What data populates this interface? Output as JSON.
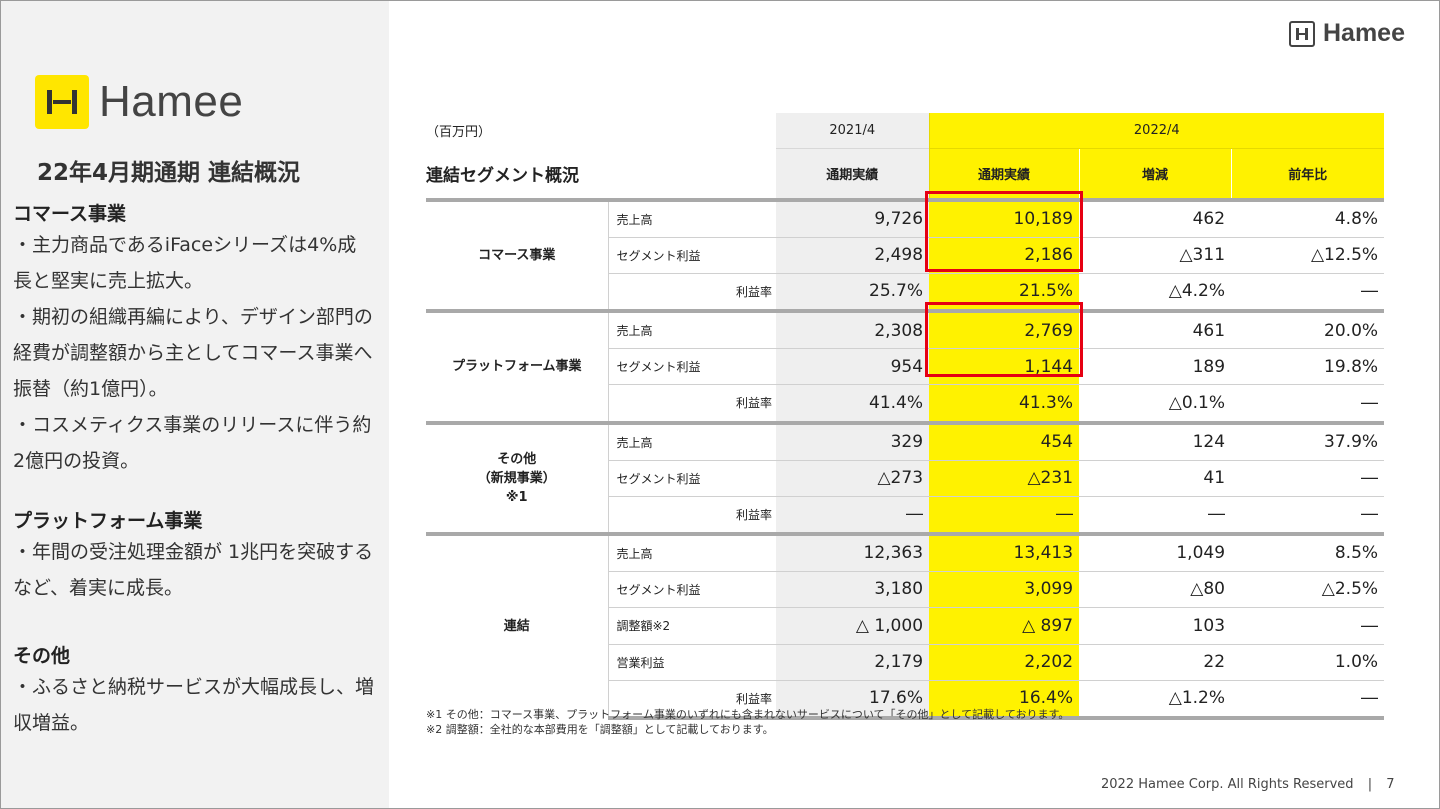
{
  "brand": {
    "name": "Hamee",
    "accent": "#fff200",
    "highlight_border": "#e60012"
  },
  "left": {
    "title": "22年4月期通期 連結概況",
    "sections": [
      {
        "heading": "コマース事業",
        "bullets": [
          "・主力商品であるiFaceシリーズは4%成長と堅実に売上拡大。",
          "・期初の組織再編により、デザイン部門の経費が調整額から主としてコマース事業へ振替（約1億円）。",
          "・コスメティクス事業のリリースに伴う約2億円の投資。"
        ]
      },
      {
        "heading": "プラットフォーム事業",
        "bullets": [
          "・年間の受注処理金額が 1兆円を突破するなど、着実に成長。"
        ]
      },
      {
        "heading": "その他",
        "bullets": [
          "・ふるさと納税サービスが大幅成長し、増収増益。"
        ]
      }
    ]
  },
  "table": {
    "unit": "（百万円）",
    "title": "連結セグメント概況",
    "year_prev": "2021/4",
    "year_curr": "2022/4",
    "col_prev": "通期実績",
    "col_curr": "通期実績",
    "col_diff": "増減",
    "col_yoy": "前年比",
    "groups": [
      {
        "name": "コマース事業",
        "rows": [
          {
            "label": "売上高",
            "prev": "9,726",
            "curr": "10,189",
            "diff": "462",
            "yoy": "4.8%"
          },
          {
            "label": "セグメント利益",
            "prev": "2,498",
            "curr": "2,186",
            "diff": "△311",
            "yoy": "△12.5%"
          },
          {
            "label": "利益率",
            "prev": "25.7%",
            "curr": "21.5%",
            "diff": "△4.2%",
            "yoy": "―"
          }
        ]
      },
      {
        "name": "プラットフォーム事業",
        "rows": [
          {
            "label": "売上高",
            "prev": "2,308",
            "curr": "2,769",
            "diff": "461",
            "yoy": "20.0%"
          },
          {
            "label": "セグメント利益",
            "prev": "954",
            "curr": "1,144",
            "diff": "189",
            "yoy": "19.8%"
          },
          {
            "label": "利益率",
            "prev": "41.4%",
            "curr": "41.3%",
            "diff": "△0.1%",
            "yoy": "―"
          }
        ]
      },
      {
        "name_lines": [
          "その他",
          "（新規事業）",
          "※1"
        ],
        "rows": [
          {
            "label": "売上高",
            "prev": "329",
            "curr": "454",
            "diff": "124",
            "yoy": "37.9%"
          },
          {
            "label": "セグメント利益",
            "prev": "△273",
            "curr": "△231",
            "diff": "41",
            "yoy": "―"
          },
          {
            "label": "利益率",
            "prev": "―",
            "curr": "―",
            "diff": "―",
            "yoy": "―"
          }
        ]
      },
      {
        "name": "連結",
        "rows": [
          {
            "label": "売上高",
            "prev": "12,363",
            "curr": "13,413",
            "diff": "1,049",
            "yoy": "8.5%"
          },
          {
            "label": "セグメント利益",
            "prev": "3,180",
            "curr": "3,099",
            "diff": "△80",
            "yoy": "△2.5%"
          },
          {
            "label": "調整額※2",
            "prev": "△ 1,000",
            "curr": "△ 897",
            "diff": "103",
            "yoy": "―"
          },
          {
            "label": "営業利益",
            "prev": "2,179",
            "curr": "2,202",
            "diff": "22",
            "yoy": "1.0%"
          },
          {
            "label": "利益率",
            "prev": "17.6%",
            "curr": "16.4%",
            "diff": "△1.2%",
            "yoy": "―"
          }
        ]
      }
    ]
  },
  "notes": [
    "※1 その他：コマース事業、プラットフォーム事業のいずれにも含まれないサービスについて「その他」として記載しております。",
    "※2 調整額：全社的な本部費用を「調整額」として記載しております。"
  ],
  "footer": {
    "copyright": "2022 Hamee Corp. All Rights Reserved",
    "sep": "|",
    "page": "7"
  }
}
